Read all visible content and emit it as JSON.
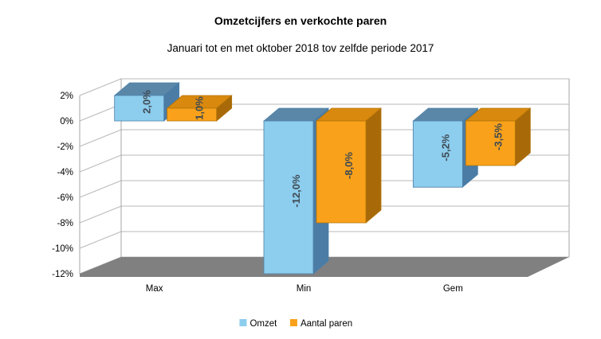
{
  "title": "Omzetcijfers en verkochte paren",
  "subtitle": "Januari tot en met oktober 2018 tov zelfde periode 2017",
  "chart_data": {
    "type": "bar",
    "projection": "3d-column",
    "categories": [
      "Max",
      "Min",
      "Gem"
    ],
    "series": [
      {
        "name": "Omzet",
        "values": [
          2.0,
          -12.0,
          -5.2
        ],
        "labels": [
          "2,0%",
          "-12,0%",
          "-5,2%"
        ],
        "color": "#8DCDEE",
        "color_top": "#5A87A8",
        "color_side": "#4A7CA6",
        "color_edge": "#4E81A8"
      },
      {
        "name": "Aantal paren",
        "values": [
          1.0,
          -8.0,
          -3.5
        ],
        "labels": [
          "1,0%",
          "-8,0%",
          "-3,5%"
        ],
        "color": "#F9A11A",
        "color_top": "#D8890E",
        "color_side": "#A86A08",
        "color_edge": "#B27408"
      }
    ],
    "y_axis": {
      "min": -12,
      "max": 2,
      "step": 2,
      "tick_labels": [
        "2%",
        "0%",
        "-2%",
        "-4%",
        "-6%",
        "-8%",
        "-10%",
        "-12%"
      ]
    },
    "legend_position": "bottom",
    "grid": true
  },
  "colors": {
    "background": "#FFFFFF",
    "floor": "#808080",
    "wall_fill": "#FFFFFF",
    "gridline": "#B8B8B8",
    "axis_line": "#A6A6A6",
    "tick_text": "#000000",
    "category_text": "#000000",
    "legend_text": "#000000",
    "bar_label_text": "#3F4A52"
  }
}
